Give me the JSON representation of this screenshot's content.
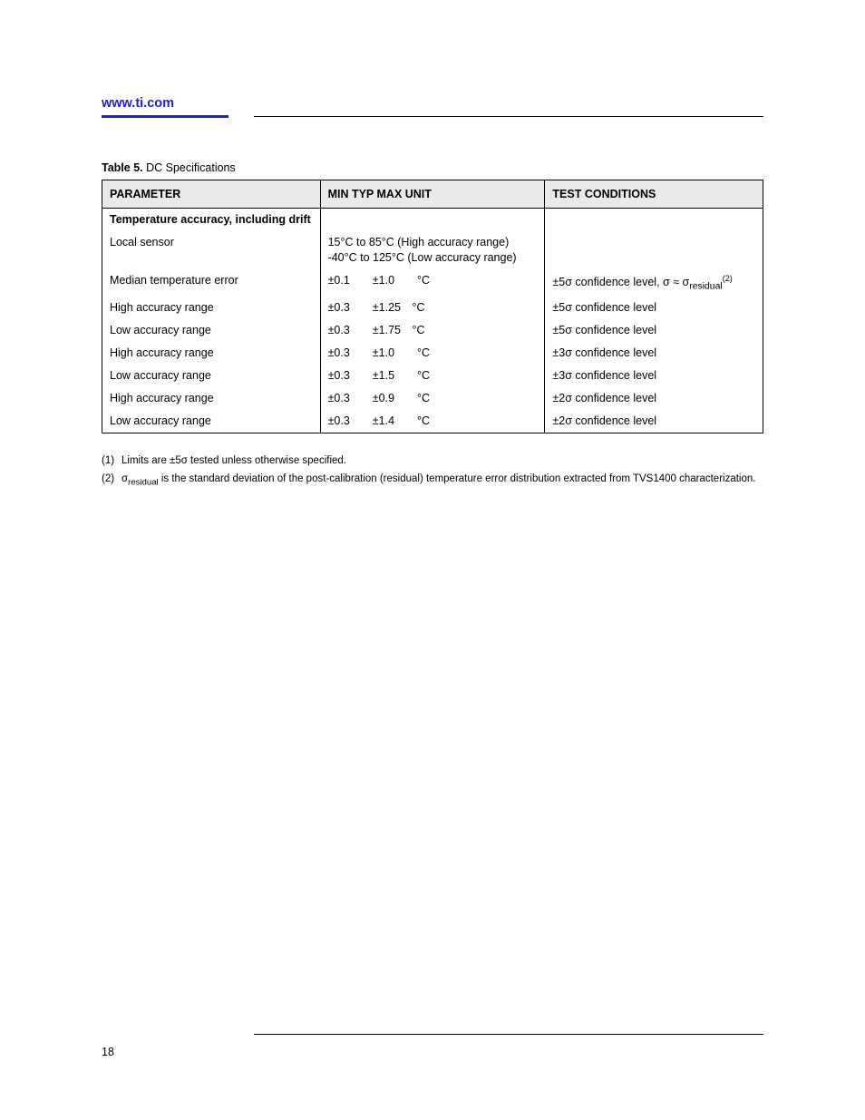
{
  "header": {
    "link_text": "www.ti.com"
  },
  "caption": {
    "prefix": "Table 5.",
    "title": " DC Specifications"
  },
  "table": {
    "headers": [
      "PARAMETER",
      "MIN   TYP   MAX    UNIT",
      "TEST CONDITIONS"
    ],
    "param_section": "Temperature accuracy, including drift",
    "rows": [
      {
        "param": "Local sensor",
        "c2_lines": [
          "15°C to 85°C (High accuracy range)",
          "-40°C to 125°C (Low accuracy range)"
        ],
        "c3_lines": [
          "&nbsp;",
          "&nbsp;"
        ]
      },
      {
        "param": "Median temperature error",
        "c2_lines": [
          "±0.1  ±1.0  °C"
        ],
        "c3_lines": [
          "±5σ confidence level, σ ≈ σ<sub>residual</sub><span class=\"sup\">(2)</span>"
        ]
      },
      {
        "param": "High accuracy range",
        "c2_lines": [
          "±0.3  ±1.25 °C"
        ],
        "c3_lines": [
          "±5σ confidence level"
        ]
      },
      {
        "param": "Low accuracy range",
        "c2_lines": [
          "±0.3  ±1.75 °C"
        ],
        "c3_lines": [
          "±5σ confidence level"
        ]
      },
      {
        "param": "High accuracy range",
        "c2_lines": [
          "±0.3  ±1.0  °C"
        ],
        "c3_lines": [
          "±3σ confidence level"
        ]
      },
      {
        "param": "Low accuracy range",
        "c2_lines": [
          "±0.3  ±1.5  °C"
        ],
        "c3_lines": [
          "±3σ confidence level"
        ]
      },
      {
        "param": "High accuracy range",
        "c2_lines": [
          "±0.3  ±0.9  °C"
        ],
        "c3_lines": [
          "±2σ confidence level"
        ]
      },
      {
        "param": "Low accuracy range",
        "c2_lines": [
          "±0.3  ±1.4  °C"
        ],
        "c3_lines": [
          "±2σ confidence level"
        ]
      }
    ]
  },
  "footnotes": [
    "(1)  Limits are ±5σ tested unless otherwise specified.",
    "(2)  σ<sub>residual</sub> is the standard deviation of the post-calibration (residual) temperature error distribution extracted from TVS1400 characterization."
  ],
  "page_number": "18"
}
